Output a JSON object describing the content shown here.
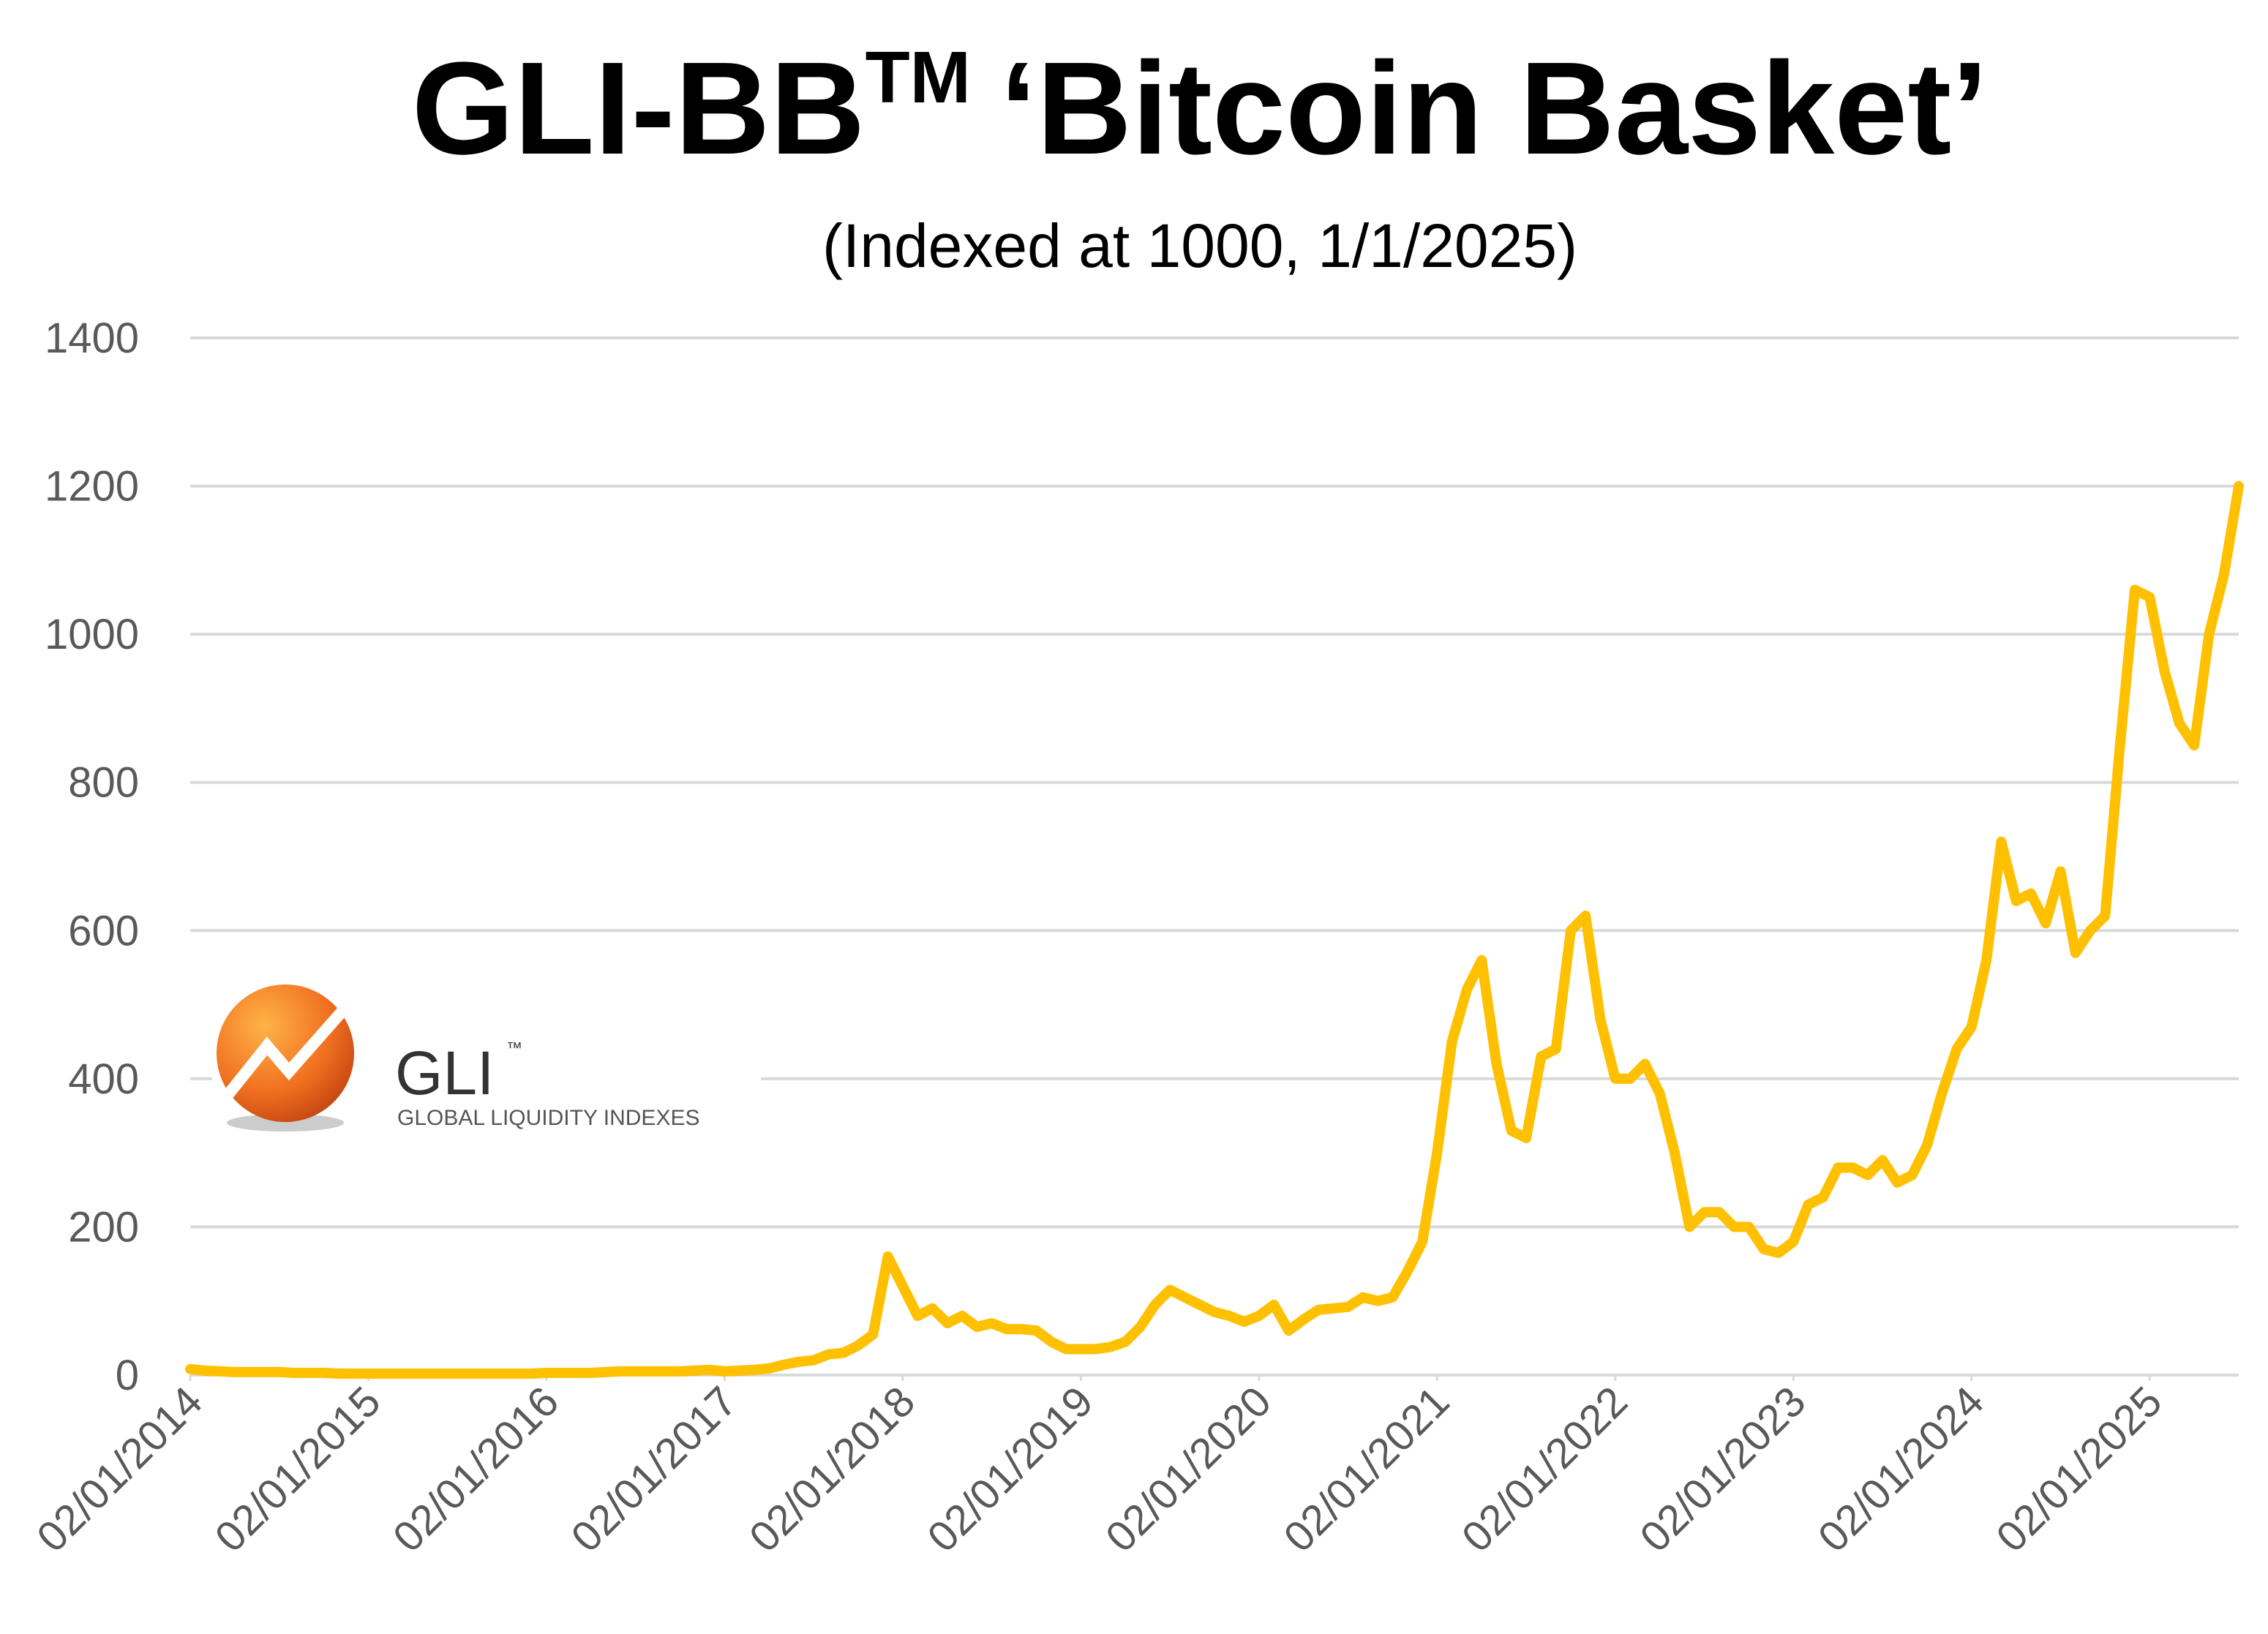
{
  "chart_data": {
    "type": "line",
    "title": "GLI-BB",
    "title_superscript": "TM",
    "title_rest": "‘Bitcoin Basket’",
    "subtitle": "(Indexed at 1000, 1/1/2025)",
    "logo": {
      "name": "GLI",
      "mark": "™",
      "tagline": "GLOBAL LIQUIDITY INDEXES"
    },
    "x": [
      "2014-01",
      "2014-02",
      "2014-03",
      "2014-04",
      "2014-05",
      "2014-06",
      "2014-07",
      "2014-08",
      "2014-09",
      "2014-10",
      "2014-11",
      "2014-12",
      "2015-01",
      "2015-02",
      "2015-03",
      "2015-04",
      "2015-05",
      "2015-06",
      "2015-07",
      "2015-08",
      "2015-09",
      "2015-10",
      "2015-11",
      "2015-12",
      "2016-01",
      "2016-02",
      "2016-03",
      "2016-04",
      "2016-05",
      "2016-06",
      "2016-07",
      "2016-08",
      "2016-09",
      "2016-10",
      "2016-11",
      "2016-12",
      "2017-01",
      "2017-02",
      "2017-03",
      "2017-04",
      "2017-05",
      "2017-06",
      "2017-07",
      "2017-08",
      "2017-09",
      "2017-10",
      "2017-11",
      "2017-12",
      "2018-01",
      "2018-02",
      "2018-03",
      "2018-04",
      "2018-05",
      "2018-06",
      "2018-07",
      "2018-08",
      "2018-09",
      "2018-10",
      "2018-11",
      "2018-12",
      "2019-01",
      "2019-02",
      "2019-03",
      "2019-04",
      "2019-05",
      "2019-06",
      "2019-07",
      "2019-08",
      "2019-09",
      "2019-10",
      "2019-11",
      "2019-12",
      "2020-01",
      "2020-02",
      "2020-03",
      "2020-04",
      "2020-05",
      "2020-06",
      "2020-07",
      "2020-08",
      "2020-09",
      "2020-10",
      "2020-11",
      "2020-12",
      "2021-01",
      "2021-02",
      "2021-03",
      "2021-04",
      "2021-05",
      "2021-06",
      "2021-07",
      "2021-08",
      "2021-09",
      "2021-10",
      "2021-11",
      "2021-12",
      "2022-01",
      "2022-02",
      "2022-03",
      "2022-04",
      "2022-05",
      "2022-06",
      "2022-07",
      "2022-08",
      "2022-09",
      "2022-10",
      "2022-11",
      "2022-12",
      "2023-01",
      "2023-02",
      "2023-03",
      "2023-04",
      "2023-05",
      "2023-06",
      "2023-07",
      "2023-08",
      "2023-09",
      "2023-10",
      "2023-11",
      "2023-12",
      "2024-01",
      "2024-02",
      "2024-03",
      "2024-04",
      "2024-05",
      "2024-06",
      "2024-07",
      "2024-08",
      "2024-09",
      "2024-10",
      "2024-11",
      "2024-12",
      "2025-01",
      "2025-02",
      "2025-03",
      "2025-04",
      "2025-05",
      "2025-06",
      "2025-07"
    ],
    "values": [
      8,
      6,
      5,
      4,
      4,
      4,
      4,
      3,
      3,
      3,
      2,
      2,
      2,
      2,
      2,
      2,
      2,
      2,
      2,
      2,
      2,
      2,
      2,
      2,
      3,
      3,
      3,
      3,
      4,
      5,
      5,
      5,
      5,
      5,
      6,
      7,
      5,
      6,
      7,
      9,
      14,
      18,
      20,
      28,
      30,
      40,
      55,
      160,
      120,
      80,
      90,
      70,
      80,
      65,
      70,
      62,
      62,
      60,
      45,
      35,
      35,
      35,
      38,
      45,
      65,
      95,
      115,
      105,
      95,
      85,
      80,
      72,
      80,
      95,
      60,
      75,
      88,
      90,
      92,
      105,
      100,
      105,
      140,
      180,
      300,
      450,
      520,
      560,
      420,
      330,
      320,
      430,
      440,
      600,
      620,
      480,
      400,
      400,
      420,
      380,
      300,
      200,
      220,
      220,
      200,
      200,
      170,
      165,
      180,
      230,
      240,
      280,
      280,
      270,
      290,
      260,
      270,
      310,
      380,
      440,
      470,
      560,
      720,
      640,
      650,
      610,
      680,
      570,
      600,
      620,
      850,
      1060,
      1050,
      950,
      880,
      850,
      1000,
      1080,
      1200
    ],
    "color": "#FFC000",
    "xlim": [
      "2014-01",
      "2025-07"
    ],
    "xticks": [
      {
        "value": "2014-01",
        "label": "02/01/2014"
      },
      {
        "value": "2015-01",
        "label": "02/01/2015"
      },
      {
        "value": "2016-01",
        "label": "02/01/2016"
      },
      {
        "value": "2017-01",
        "label": "02/01/2017"
      },
      {
        "value": "2018-01",
        "label": "02/01/2018"
      },
      {
        "value": "2019-01",
        "label": "02/01/2019"
      },
      {
        "value": "2020-01",
        "label": "02/01/2020"
      },
      {
        "value": "2021-01",
        "label": "02/01/2021"
      },
      {
        "value": "2022-01",
        "label": "02/01/2022"
      },
      {
        "value": "2023-01",
        "label": "02/01/2023"
      },
      {
        "value": "2024-01",
        "label": "02/01/2024"
      },
      {
        "value": "2025-01",
        "label": "02/01/2025"
      }
    ],
    "ylim": [
      0,
      1400
    ],
    "yticks": [
      0,
      200,
      400,
      600,
      800,
      1000,
      1200,
      1400
    ],
    "grid": true
  }
}
